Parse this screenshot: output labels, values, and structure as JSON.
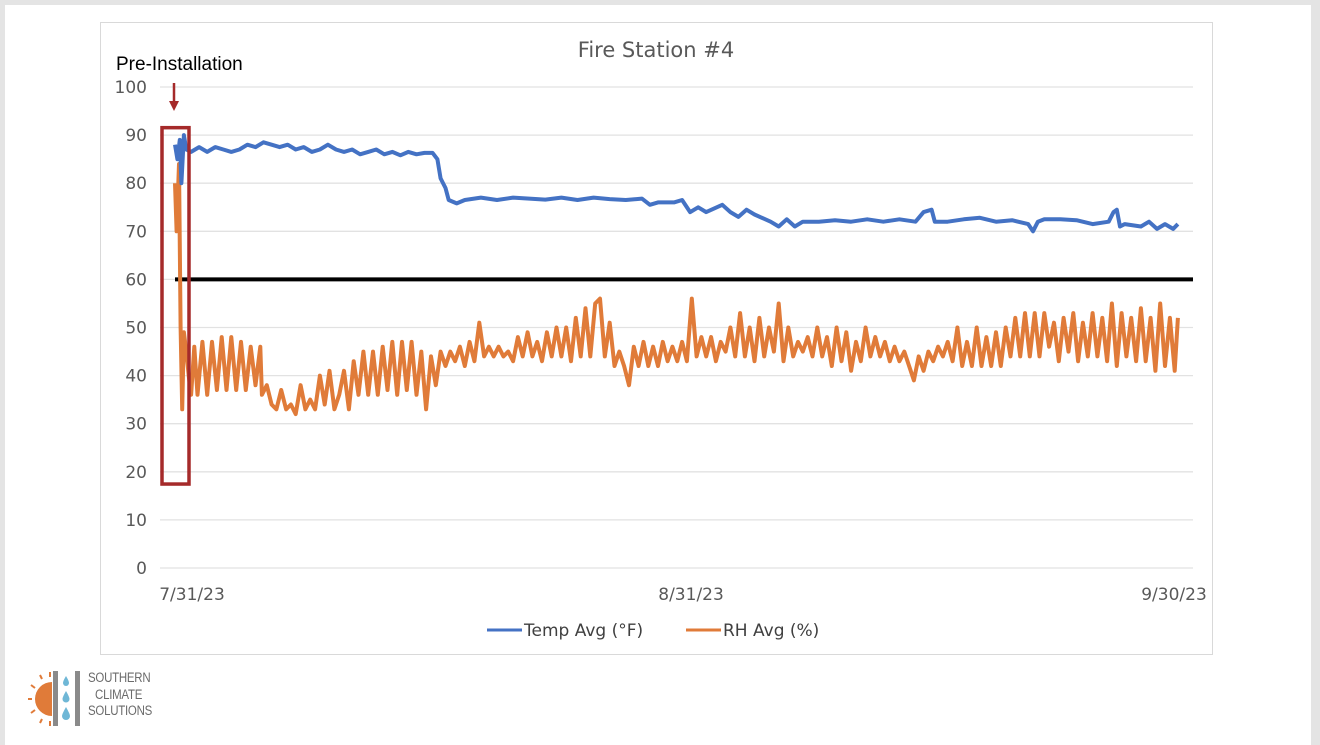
{
  "chart_data": {
    "type": "line",
    "title": "Fire Station #4",
    "xlabel": "",
    "ylabel": "",
    "ylim": [
      0,
      100
    ],
    "y_ticks": [
      0,
      10,
      20,
      30,
      40,
      50,
      60,
      70,
      80,
      90,
      100
    ],
    "x_tick_labels": [
      "7/31/23",
      "8/31/23",
      "9/30/23"
    ],
    "x_tick_days": [
      0,
      31,
      61
    ],
    "x_range_days": [
      0,
      63
    ],
    "grid": true,
    "legend_position": "bottom",
    "reference_line": {
      "value": 60,
      "color": "#000000"
    },
    "annotation": {
      "label": "Pre-Installation",
      "box_days": [
        -0.8,
        0.9
      ],
      "box_values": [
        16,
        93
      ],
      "color": "#a52a2a"
    },
    "series": [
      {
        "name": "Temp Avg (°F)",
        "color": "#4472c4",
        "points": [
          [
            0,
            88
          ],
          [
            0.15,
            85
          ],
          [
            0.3,
            89
          ],
          [
            0.4,
            80
          ],
          [
            0.55,
            90
          ],
          [
            0.7,
            87
          ],
          [
            1,
            86.5
          ],
          [
            1.5,
            87.5
          ],
          [
            2,
            86.5
          ],
          [
            2.5,
            87.5
          ],
          [
            3,
            87
          ],
          [
            3.5,
            86.5
          ],
          [
            4,
            87
          ],
          [
            4.5,
            88
          ],
          [
            5,
            87.5
          ],
          [
            5.5,
            88.5
          ],
          [
            6,
            88
          ],
          [
            6.5,
            87.5
          ],
          [
            7,
            88
          ],
          [
            7.5,
            87
          ],
          [
            8,
            87.5
          ],
          [
            8.5,
            86.5
          ],
          [
            9,
            87
          ],
          [
            9.5,
            88
          ],
          [
            10,
            87
          ],
          [
            10.5,
            86.5
          ],
          [
            11,
            87
          ],
          [
            11.5,
            86
          ],
          [
            12,
            86.5
          ],
          [
            12.5,
            87
          ],
          [
            13,
            86
          ],
          [
            13.5,
            86.5
          ],
          [
            14,
            85.8
          ],
          [
            14.5,
            86.5
          ],
          [
            15,
            86
          ],
          [
            15.5,
            86.3
          ],
          [
            16,
            86.3
          ],
          [
            16.3,
            85
          ],
          [
            16.5,
            81
          ],
          [
            16.8,
            79
          ],
          [
            17,
            76.5
          ],
          [
            17.5,
            75.8
          ],
          [
            18,
            76.5
          ],
          [
            19,
            77
          ],
          [
            20,
            76.5
          ],
          [
            21,
            77
          ],
          [
            22,
            76.8
          ],
          [
            23,
            76.6
          ],
          [
            24,
            77
          ],
          [
            25,
            76.5
          ],
          [
            26,
            77
          ],
          [
            27,
            76.7
          ],
          [
            28,
            76.5
          ],
          [
            29,
            76.8
          ],
          [
            29.5,
            75.5
          ],
          [
            30,
            76
          ],
          [
            31,
            76
          ],
          [
            31.5,
            76.5
          ],
          [
            32,
            74
          ],
          [
            32.5,
            75
          ],
          [
            33,
            74
          ],
          [
            34,
            75.5
          ],
          [
            34.5,
            74
          ],
          [
            35,
            73
          ],
          [
            35.5,
            74.5
          ],
          [
            36,
            73.5
          ],
          [
            37,
            72
          ],
          [
            37.5,
            71
          ],
          [
            38,
            72.5
          ],
          [
            38.5,
            71
          ],
          [
            39,
            72
          ],
          [
            40,
            72
          ],
          [
            41,
            72.3
          ],
          [
            42,
            72
          ],
          [
            43,
            72.5
          ],
          [
            44,
            72
          ],
          [
            45,
            72.5
          ],
          [
            46,
            72
          ],
          [
            46.5,
            74
          ],
          [
            47,
            74.5
          ],
          [
            47.2,
            72
          ],
          [
            48,
            72
          ],
          [
            49,
            72.5
          ],
          [
            50,
            72.8
          ],
          [
            51,
            72
          ],
          [
            52,
            72.3
          ],
          [
            53,
            71.5
          ],
          [
            53.3,
            70
          ],
          [
            53.6,
            72
          ],
          [
            54,
            72.5
          ],
          [
            55,
            72.5
          ],
          [
            56,
            72.3
          ],
          [
            57,
            71.5
          ],
          [
            58,
            72
          ],
          [
            58.3,
            74
          ],
          [
            58.5,
            74.5
          ],
          [
            58.7,
            71
          ],
          [
            59,
            71.5
          ],
          [
            60,
            71
          ],
          [
            60.5,
            72
          ],
          [
            61,
            70.5
          ],
          [
            61.5,
            71.5
          ],
          [
            62,
            70.5
          ],
          [
            62.3,
            71.5
          ]
        ]
      },
      {
        "name": "RH Avg (%)",
        "color": "#e07b39",
        "points": [
          [
            0,
            80
          ],
          [
            0.1,
            70
          ],
          [
            0.25,
            84
          ],
          [
            0.35,
            50
          ],
          [
            0.45,
            33
          ],
          [
            0.55,
            49
          ],
          [
            0.7,
            45
          ],
          [
            0.85,
            40
          ],
          [
            1,
            36
          ],
          [
            1.2,
            46
          ],
          [
            1.4,
            36
          ],
          [
            1.7,
            47
          ],
          [
            2,
            36
          ],
          [
            2.3,
            47
          ],
          [
            2.6,
            37
          ],
          [
            2.9,
            48
          ],
          [
            3.2,
            37
          ],
          [
            3.5,
            48
          ],
          [
            3.8,
            37
          ],
          [
            4.1,
            47
          ],
          [
            4.4,
            37
          ],
          [
            4.7,
            46
          ],
          [
            5,
            38
          ],
          [
            5.3,
            46
          ],
          [
            5.4,
            36
          ],
          [
            5.7,
            38
          ],
          [
            6,
            34
          ],
          [
            6.3,
            33
          ],
          [
            6.6,
            37
          ],
          [
            6.9,
            33
          ],
          [
            7.2,
            34
          ],
          [
            7.5,
            32
          ],
          [
            7.8,
            38
          ],
          [
            8.1,
            33
          ],
          [
            8.4,
            35
          ],
          [
            8.7,
            33
          ],
          [
            9,
            40
          ],
          [
            9.3,
            34
          ],
          [
            9.6,
            41
          ],
          [
            9.9,
            33
          ],
          [
            10.2,
            36
          ],
          [
            10.5,
            41
          ],
          [
            10.8,
            33
          ],
          [
            11.1,
            43
          ],
          [
            11.4,
            36
          ],
          [
            11.7,
            45
          ],
          [
            12,
            36
          ],
          [
            12.3,
            45
          ],
          [
            12.6,
            36
          ],
          [
            12.9,
            46
          ],
          [
            13.2,
            37
          ],
          [
            13.5,
            47
          ],
          [
            13.8,
            36
          ],
          [
            14.1,
            47
          ],
          [
            14.4,
            37
          ],
          [
            14.7,
            47
          ],
          [
            15,
            36
          ],
          [
            15.3,
            45
          ],
          [
            15.6,
            33
          ],
          [
            15.9,
            44
          ],
          [
            16.2,
            38
          ],
          [
            16.5,
            45
          ],
          [
            16.8,
            42
          ],
          [
            17.1,
            45
          ],
          [
            17.4,
            43
          ],
          [
            17.7,
            46
          ],
          [
            18,
            42
          ],
          [
            18.3,
            47
          ],
          [
            18.6,
            43
          ],
          [
            18.9,
            51
          ],
          [
            19.2,
            44
          ],
          [
            19.5,
            46
          ],
          [
            19.8,
            44
          ],
          [
            20.1,
            46
          ],
          [
            20.4,
            44
          ],
          [
            20.7,
            45
          ],
          [
            21,
            43
          ],
          [
            21.3,
            48
          ],
          [
            21.6,
            44
          ],
          [
            21.9,
            49
          ],
          [
            22.2,
            44
          ],
          [
            22.5,
            47
          ],
          [
            22.8,
            43
          ],
          [
            23.1,
            49
          ],
          [
            23.4,
            44
          ],
          [
            23.7,
            50
          ],
          [
            24,
            44
          ],
          [
            24.3,
            50
          ],
          [
            24.6,
            43
          ],
          [
            24.9,
            52
          ],
          [
            25.2,
            44
          ],
          [
            25.5,
            54
          ],
          [
            25.8,
            44
          ],
          [
            26.1,
            55
          ],
          [
            26.4,
            56
          ],
          [
            26.7,
            44
          ],
          [
            27,
            51
          ],
          [
            27.3,
            42
          ],
          [
            27.6,
            45
          ],
          [
            27.9,
            42
          ],
          [
            28.2,
            38
          ],
          [
            28.5,
            46
          ],
          [
            28.8,
            42
          ],
          [
            29.1,
            47
          ],
          [
            29.4,
            42
          ],
          [
            29.7,
            46
          ],
          [
            30,
            42
          ],
          [
            30.3,
            47
          ],
          [
            30.6,
            43
          ],
          [
            30.9,
            46
          ],
          [
            31.2,
            43
          ],
          [
            31.5,
            47
          ],
          [
            31.8,
            43
          ],
          [
            32.1,
            56
          ],
          [
            32.4,
            44
          ],
          [
            32.7,
            48
          ],
          [
            33,
            44
          ],
          [
            33.3,
            48
          ],
          [
            33.6,
            43
          ],
          [
            33.9,
            47
          ],
          [
            34.2,
            45
          ],
          [
            34.5,
            50
          ],
          [
            34.8,
            44
          ],
          [
            35.1,
            53
          ],
          [
            35.4,
            44
          ],
          [
            35.7,
            50
          ],
          [
            36,
            43
          ],
          [
            36.3,
            52
          ],
          [
            36.6,
            44
          ],
          [
            36.9,
            50
          ],
          [
            37.2,
            45
          ],
          [
            37.5,
            55
          ],
          [
            37.8,
            43
          ],
          [
            38.1,
            50
          ],
          [
            38.4,
            44
          ],
          [
            38.7,
            47
          ],
          [
            39,
            45
          ],
          [
            39.3,
            48
          ],
          [
            39.6,
            44
          ],
          [
            39.9,
            50
          ],
          [
            40.2,
            44
          ],
          [
            40.5,
            48
          ],
          [
            40.8,
            42
          ],
          [
            41.1,
            50
          ],
          [
            41.4,
            43
          ],
          [
            41.7,
            49
          ],
          [
            42,
            41
          ],
          [
            42.3,
            47
          ],
          [
            42.6,
            43
          ],
          [
            42.9,
            50
          ],
          [
            43.2,
            44
          ],
          [
            43.5,
            48
          ],
          [
            43.8,
            44
          ],
          [
            44.1,
            47
          ],
          [
            44.4,
            43
          ],
          [
            44.7,
            46
          ],
          [
            45,
            43
          ],
          [
            45.3,
            45
          ],
          [
            45.6,
            42
          ],
          [
            45.9,
            39
          ],
          [
            46.2,
            44
          ],
          [
            46.5,
            41
          ],
          [
            46.8,
            45
          ],
          [
            47.1,
            43
          ],
          [
            47.4,
            46
          ],
          [
            47.7,
            44
          ],
          [
            48,
            47
          ],
          [
            48.3,
            43
          ],
          [
            48.6,
            50
          ],
          [
            48.9,
            42
          ],
          [
            49.2,
            47
          ],
          [
            49.5,
            42
          ],
          [
            49.8,
            50
          ],
          [
            50.1,
            42
          ],
          [
            50.4,
            48
          ],
          [
            50.7,
            42
          ],
          [
            51,
            49
          ],
          [
            51.3,
            42
          ],
          [
            51.6,
            50
          ],
          [
            51.9,
            44
          ],
          [
            52.2,
            52
          ],
          [
            52.5,
            44
          ],
          [
            52.8,
            53
          ],
          [
            53.1,
            44
          ],
          [
            53.4,
            53
          ],
          [
            53.7,
            44
          ],
          [
            54,
            53
          ],
          [
            54.3,
            46
          ],
          [
            54.6,
            51
          ],
          [
            54.9,
            43
          ],
          [
            55.2,
            52
          ],
          [
            55.5,
            45
          ],
          [
            55.8,
            53
          ],
          [
            56.1,
            43
          ],
          [
            56.4,
            51
          ],
          [
            56.7,
            44
          ],
          [
            57,
            53
          ],
          [
            57.3,
            44
          ],
          [
            57.6,
            52
          ],
          [
            57.9,
            43
          ],
          [
            58.2,
            55
          ],
          [
            58.5,
            42
          ],
          [
            58.8,
            53
          ],
          [
            59.1,
            44
          ],
          [
            59.4,
            52
          ],
          [
            59.7,
            43
          ],
          [
            60,
            54
          ],
          [
            60.3,
            43
          ],
          [
            60.6,
            52
          ],
          [
            60.9,
            41
          ],
          [
            61.2,
            55
          ],
          [
            61.5,
            42
          ],
          [
            61.8,
            52
          ],
          [
            62.1,
            41
          ],
          [
            62.3,
            52
          ]
        ]
      }
    ]
  },
  "legend": {
    "items": [
      {
        "label": "Temp Avg (°F)",
        "color": "#4472c4"
      },
      {
        "label": "RH Avg (%)",
        "color": "#e07b39"
      }
    ]
  },
  "logo": {
    "lines": [
      "SOUTHERN",
      "CLIMATE",
      "SOLUTIONS"
    ],
    "sun_color": "#e07b39",
    "drop_color": "#6fb7d6",
    "bar_color": "#8a8a8a"
  }
}
